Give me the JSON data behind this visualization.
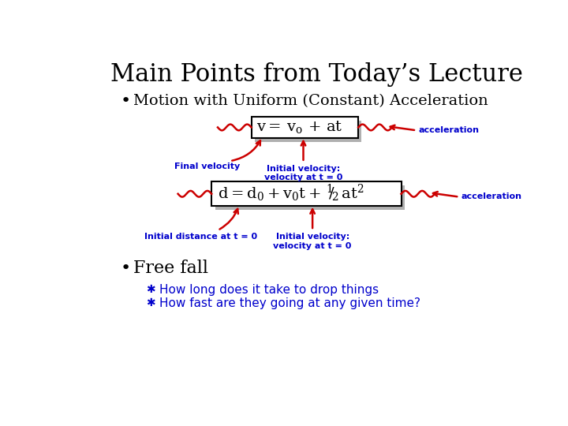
{
  "title": "Main Points from Today’s Lecture",
  "bg_color": "#ffffff",
  "title_color": "#000000",
  "title_fontsize": 22,
  "bullet1": "Motion with Uniform (Constant) Acceleration",
  "bullet1_color": "#000000",
  "bullet1_fontsize": 14,
  "eq_box_color": "#b0b0b0",
  "eq_text_color": "#000000",
  "annotation_color": "#0000cc",
  "arrow_color": "#cc0000",
  "label_final_vel": "Final velocity",
  "label_init_vel1": "Initial velocity:\nvelocity at t = 0",
  "label_accel1": "acceleration",
  "label_init_dist": "Initial distance at t = 0",
  "label_init_vel2": "Initial velocity:\nvelocity at t = 0",
  "label_accel2": "acceleration",
  "bullet2": "Free fall",
  "bullet2_color": "#000000",
  "bullet2_fontsize": 16,
  "sub1": "How long does it take to drop things",
  "sub2": "How fast are they going at any given time?",
  "sub_color": "#0000cc",
  "sub_fontsize": 11,
  "ann_fontsize": 8
}
